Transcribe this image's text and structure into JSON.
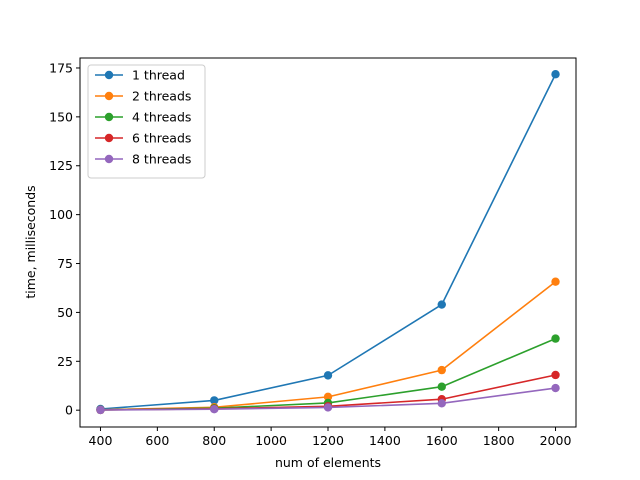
{
  "chart_data": {
    "type": "line",
    "title": "",
    "xlabel": "num of elements",
    "ylabel": "time, milliseconds",
    "x": [
      400,
      800,
      1200,
      1600,
      2000
    ],
    "xlim": [
      328,
      2072
    ],
    "ylim": [
      -8.6,
      180.1
    ],
    "xticks": [
      400,
      600,
      800,
      1000,
      1200,
      1400,
      1600,
      1800,
      2000
    ],
    "yticks": [
      0,
      25,
      50,
      75,
      100,
      125,
      150,
      175
    ],
    "grid": false,
    "legend_position": "top-left",
    "series": [
      {
        "name": "1 thread",
        "color": "#1f77b4",
        "values": [
          0.6,
          5.0,
          17.8,
          54.0,
          171.8
        ]
      },
      {
        "name": "2 threads",
        "color": "#ff7f0e",
        "values": [
          0.2,
          1.5,
          6.8,
          20.5,
          65.7
        ]
      },
      {
        "name": "4 threads",
        "color": "#2ca02c",
        "values": [
          0.1,
          1.0,
          3.7,
          12.0,
          36.6
        ]
      },
      {
        "name": "6 threads",
        "color": "#d62728",
        "values": [
          0.1,
          0.7,
          2.0,
          5.6,
          18.0
        ]
      },
      {
        "name": "8 threads",
        "color": "#9467bd",
        "values": [
          0.1,
          0.5,
          1.4,
          3.5,
          11.3
        ]
      }
    ]
  }
}
